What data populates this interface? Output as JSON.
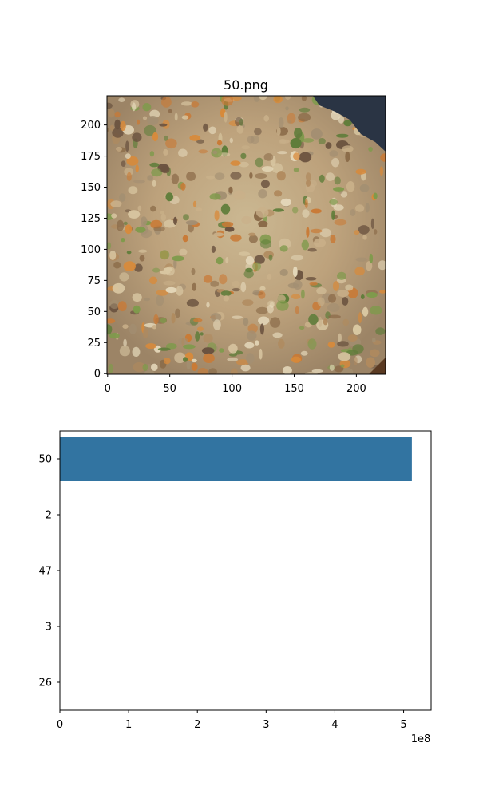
{
  "chart_data": [
    {
      "type": "image",
      "title": "50.png",
      "x_ticks": [
        0,
        50,
        100,
        150,
        200
      ],
      "y_ticks": [
        0,
        25,
        50,
        75,
        100,
        125,
        150,
        175,
        200
      ],
      "xlim": [
        -0.5,
        223.5
      ],
      "ylim": [
        223.5,
        -0.5
      ],
      "image_description": "close-up of fried rice with carrot and green vegetable pieces"
    },
    {
      "type": "bar",
      "orientation": "horizontal",
      "categories": [
        "50",
        "2",
        "47",
        "3",
        "26"
      ],
      "values": [
        512000000,
        0,
        0,
        0,
        0
      ],
      "x_ticks": [
        0,
        1,
        2,
        3,
        4,
        5
      ],
      "x_tick_labels": [
        "0",
        "1",
        "2",
        "3",
        "4",
        "5"
      ],
      "x_offset_label": "1e8",
      "xlim": [
        0,
        540000000
      ],
      "color": "#3274a1"
    }
  ]
}
